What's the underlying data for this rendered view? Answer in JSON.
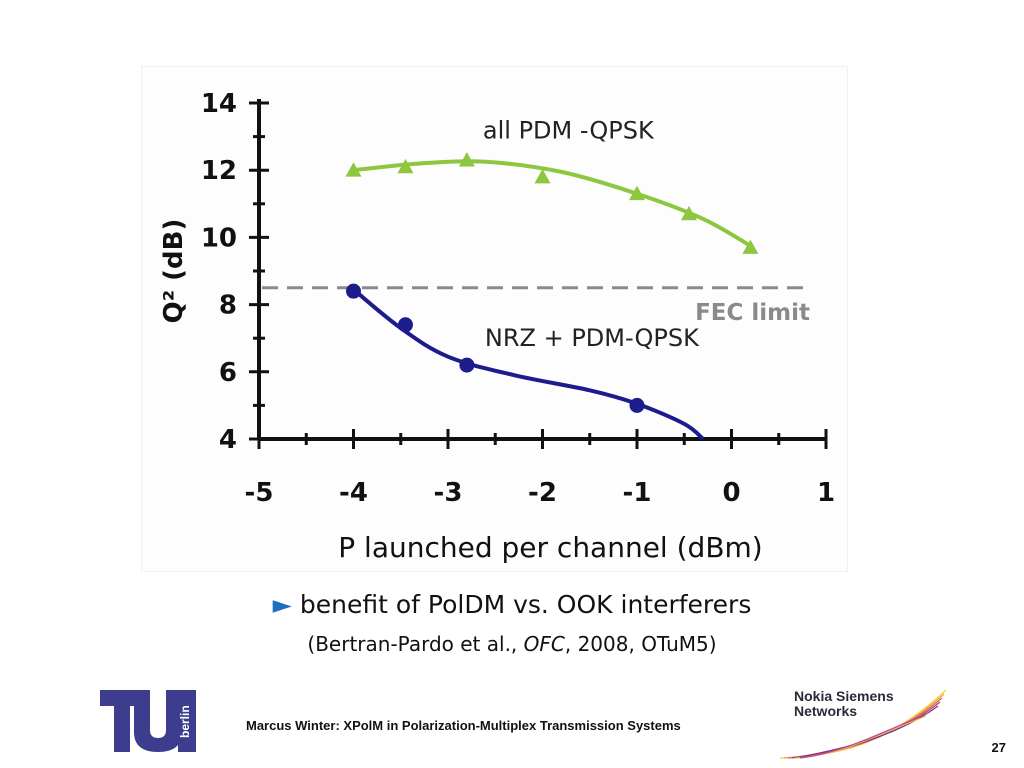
{
  "chart_data": {
    "type": "line",
    "xlabel": "P launched per channel (dBm)",
    "ylabel": "Q² (dB)",
    "xlim": [
      -5,
      1
    ],
    "ylim": [
      4,
      14
    ],
    "xticks": [
      "-5",
      "-4",
      "-3",
      "-2",
      "-1",
      "0",
      "1"
    ],
    "yticks": [
      "4",
      "6",
      "8",
      "10",
      "12",
      "14"
    ],
    "grid": false,
    "series": [
      {
        "name": "all PDM -QPSK",
        "color": "#8dc63f",
        "marker": "triangle",
        "x": [
          -4.0,
          -3.45,
          -2.8,
          -2.0,
          -1.0,
          -0.45,
          0.2
        ],
        "y": [
          12.0,
          12.1,
          12.3,
          11.8,
          11.3,
          10.7,
          9.7
        ]
      },
      {
        "name": "NRZ + PDM-QPSK",
        "color": "#1c1c8c",
        "marker": "circle",
        "x": [
          -4.0,
          -3.45,
          -2.8,
          -1.0
        ],
        "y": [
          8.4,
          7.4,
          6.2,
          5.0
        ]
      }
    ],
    "annotations": [
      {
        "text": "FEC limit",
        "value": 8.5,
        "style": "dashed horizontal line",
        "color": "#8a8a8a"
      }
    ]
  },
  "caption": {
    "arrow": "►",
    "line1": "benefit of PolDM vs. OOK interferers",
    "line2_prefix": "(Bertran-Pardo et al., ",
    "line2_italic": "OFC",
    "line2_suffix": ", 2008, OTuM5)"
  },
  "footer": {
    "text": "Marcus Winter: XPolM in Polarization-Multiplex Transmission Systems",
    "page_number": "27"
  },
  "logos": {
    "left_text": "berlin",
    "right_line1": "Nokia Siemens",
    "right_line2": "Networks",
    "left_color": "#3d3d8f"
  }
}
